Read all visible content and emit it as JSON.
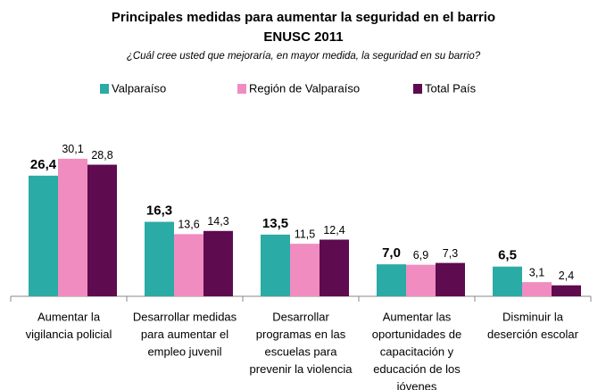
{
  "chart_data": {
    "type": "bar",
    "title": [
      "Principales medidas para aumentar la seguridad en el barrio",
      "ENUSC 2011"
    ],
    "subtitle": "¿Cuál cree usted que mejoraría, en mayor medida, la seguridad en su barrio?",
    "categories": [
      [
        "Aumentar la",
        "vigilancia policial"
      ],
      [
        "Desarrollar medidas",
        "para aumentar el",
        "empleo juvenil"
      ],
      [
        "Desarrollar",
        "programas en las",
        "escuelas para",
        "prevenir la violencia"
      ],
      [
        "Aumentar las",
        "oportunidades de",
        "capacitación y",
        "educación de los",
        "jóvenes"
      ],
      [
        "Disminuir la",
        "deserción escolar"
      ]
    ],
    "series": [
      {
        "name": "Valparaíso",
        "color": "#2aaba5",
        "values": [
          26.4,
          16.3,
          13.5,
          7.0,
          6.5
        ],
        "value_labels": [
          "26,4",
          "16,3",
          "13,5",
          "7,0",
          "6,5"
        ]
      },
      {
        "name": "Región de Valparaíso",
        "color": "#f08cc0",
        "values": [
          30.1,
          13.6,
          11.5,
          6.9,
          3.1
        ],
        "value_labels": [
          "30,1",
          "13,6",
          "11,5",
          "6,9",
          "3,1"
        ]
      },
      {
        "name": "Total País",
        "color": "#5e0b50",
        "values": [
          28.8,
          14.3,
          12.4,
          7.3,
          2.4
        ],
        "value_labels": [
          "28,8",
          "14,3",
          "12,4",
          "7,3",
          "2,4"
        ]
      }
    ]
  }
}
